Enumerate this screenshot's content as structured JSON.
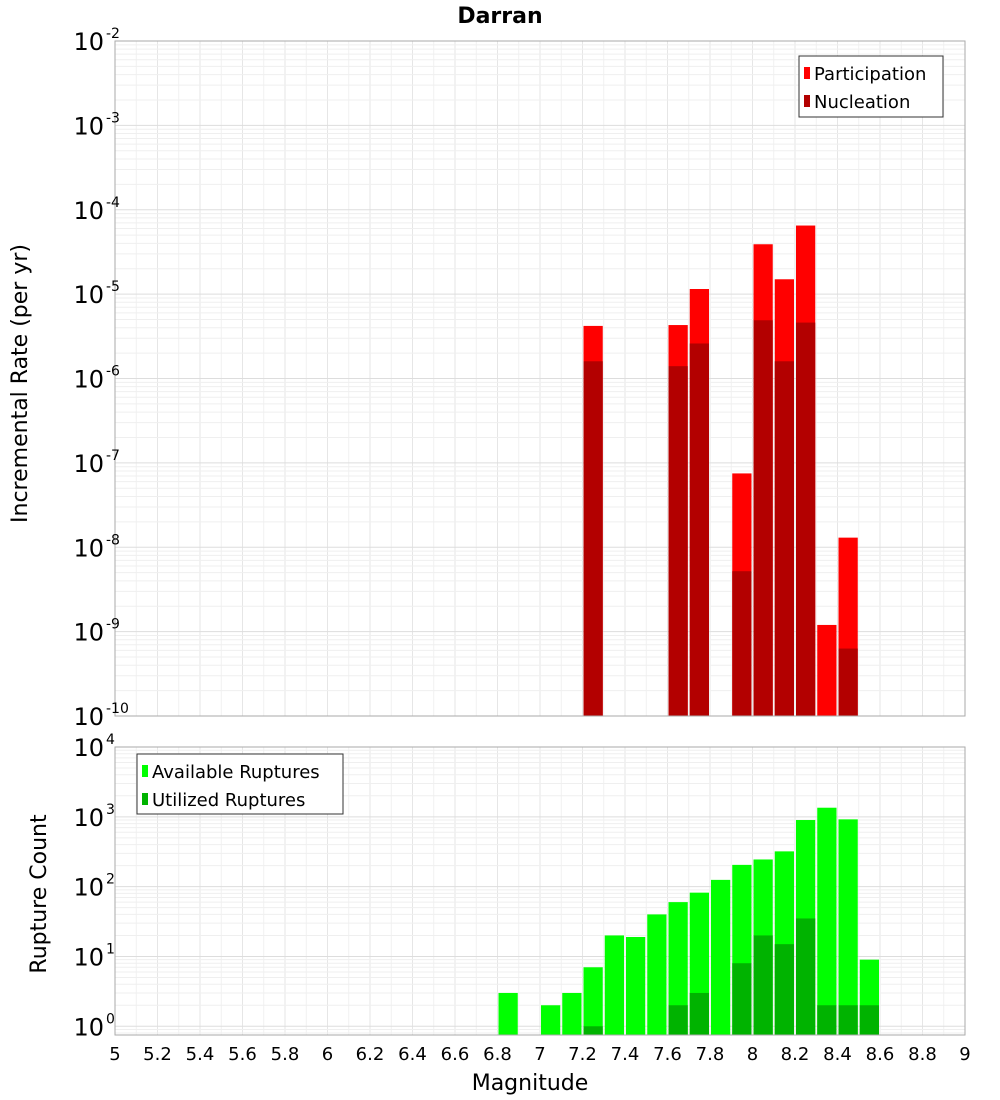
{
  "chart_data": [
    {
      "type": "bar",
      "title": "Darran",
      "xlabel": "",
      "ylabel": "Incremental Rate (per yr)",
      "yscale": "log",
      "ylim": [
        1e-10,
        0.01
      ],
      "xlim": [
        5,
        9
      ],
      "bar_width": 0.1,
      "grid": true,
      "legend_position": "top-right",
      "y_ticks": [
        {
          "base": "10",
          "exp": "-2"
        },
        {
          "base": "10",
          "exp": "-3"
        },
        {
          "base": "10",
          "exp": "-4"
        },
        {
          "base": "10",
          "exp": "-5"
        },
        {
          "base": "10",
          "exp": "-6"
        },
        {
          "base": "10",
          "exp": "-7"
        },
        {
          "base": "10",
          "exp": "-8"
        },
        {
          "base": "10",
          "exp": "-9"
        },
        {
          "base": "10",
          "exp": "-10"
        }
      ],
      "series": [
        {
          "name": "Participation",
          "color": "#ff0000",
          "x": [
            7.25,
            7.65,
            7.75,
            7.95,
            8.05,
            8.15,
            8.25,
            8.35,
            8.45
          ],
          "values": [
            4.2e-06,
            4.3e-06,
            1.15e-05,
            7.5e-08,
            3.9e-05,
            1.5e-05,
            6.5e-05,
            1.2e-09,
            1.3e-08
          ]
        },
        {
          "name": "Nucleation",
          "color": "#b30000",
          "x": [
            7.25,
            7.65,
            7.75,
            7.95,
            8.05,
            8.15,
            8.25,
            8.45
          ],
          "values": [
            1.6e-06,
            1.4e-06,
            2.6e-06,
            5.2e-09,
            4.9e-06,
            1.6e-06,
            4.6e-06,
            6.3e-10
          ]
        }
      ]
    },
    {
      "type": "bar",
      "title": "",
      "xlabel": "Magnitude",
      "ylabel": "Rupture Count",
      "yscale": "log",
      "ylim": [
        0.75,
        10000
      ],
      "xlim": [
        5,
        9
      ],
      "bar_width": 0.1,
      "grid": true,
      "legend_position": "top-left",
      "y_ticks": [
        {
          "value": 1,
          "base": "10",
          "exp": "0"
        },
        {
          "value": 10,
          "base": "10",
          "exp": "1"
        },
        {
          "value": 100,
          "base": "10",
          "exp": "2"
        },
        {
          "value": 1000,
          "base": "10",
          "exp": "3"
        },
        {
          "value": 10000,
          "base": "10",
          "exp": "4"
        }
      ],
      "x_ticks": [
        "5",
        "5.2",
        "5.4",
        "5.6",
        "5.8",
        "6",
        "6.2",
        "6.4",
        "6.6",
        "6.8",
        "7",
        "7.2",
        "7.4",
        "7.6",
        "7.8",
        "8",
        "8.2",
        "8.4",
        "8.6",
        "8.8",
        "9"
      ],
      "series": [
        {
          "name": "Available Ruptures",
          "color": "#00ff00",
          "x": [
            6.85,
            7.05,
            7.15,
            7.25,
            7.35,
            7.45,
            7.55,
            7.65,
            7.75,
            7.85,
            7.95,
            8.05,
            8.15,
            8.25,
            8.35,
            8.45,
            8.55
          ],
          "values": [
            3,
            2,
            3,
            7,
            20,
            19,
            40,
            60,
            82,
            125,
            205,
            245,
            320,
            900,
            1350,
            920,
            9
          ]
        },
        {
          "name": "Utilized Ruptures",
          "color": "#00b300",
          "x": [
            7.25,
            7.65,
            7.75,
            7.95,
            8.05,
            8.15,
            8.25,
            8.35,
            8.45,
            8.55
          ],
          "values": [
            1,
            2,
            3,
            8,
            20,
            15,
            35,
            2,
            2,
            2
          ]
        }
      ]
    }
  ]
}
